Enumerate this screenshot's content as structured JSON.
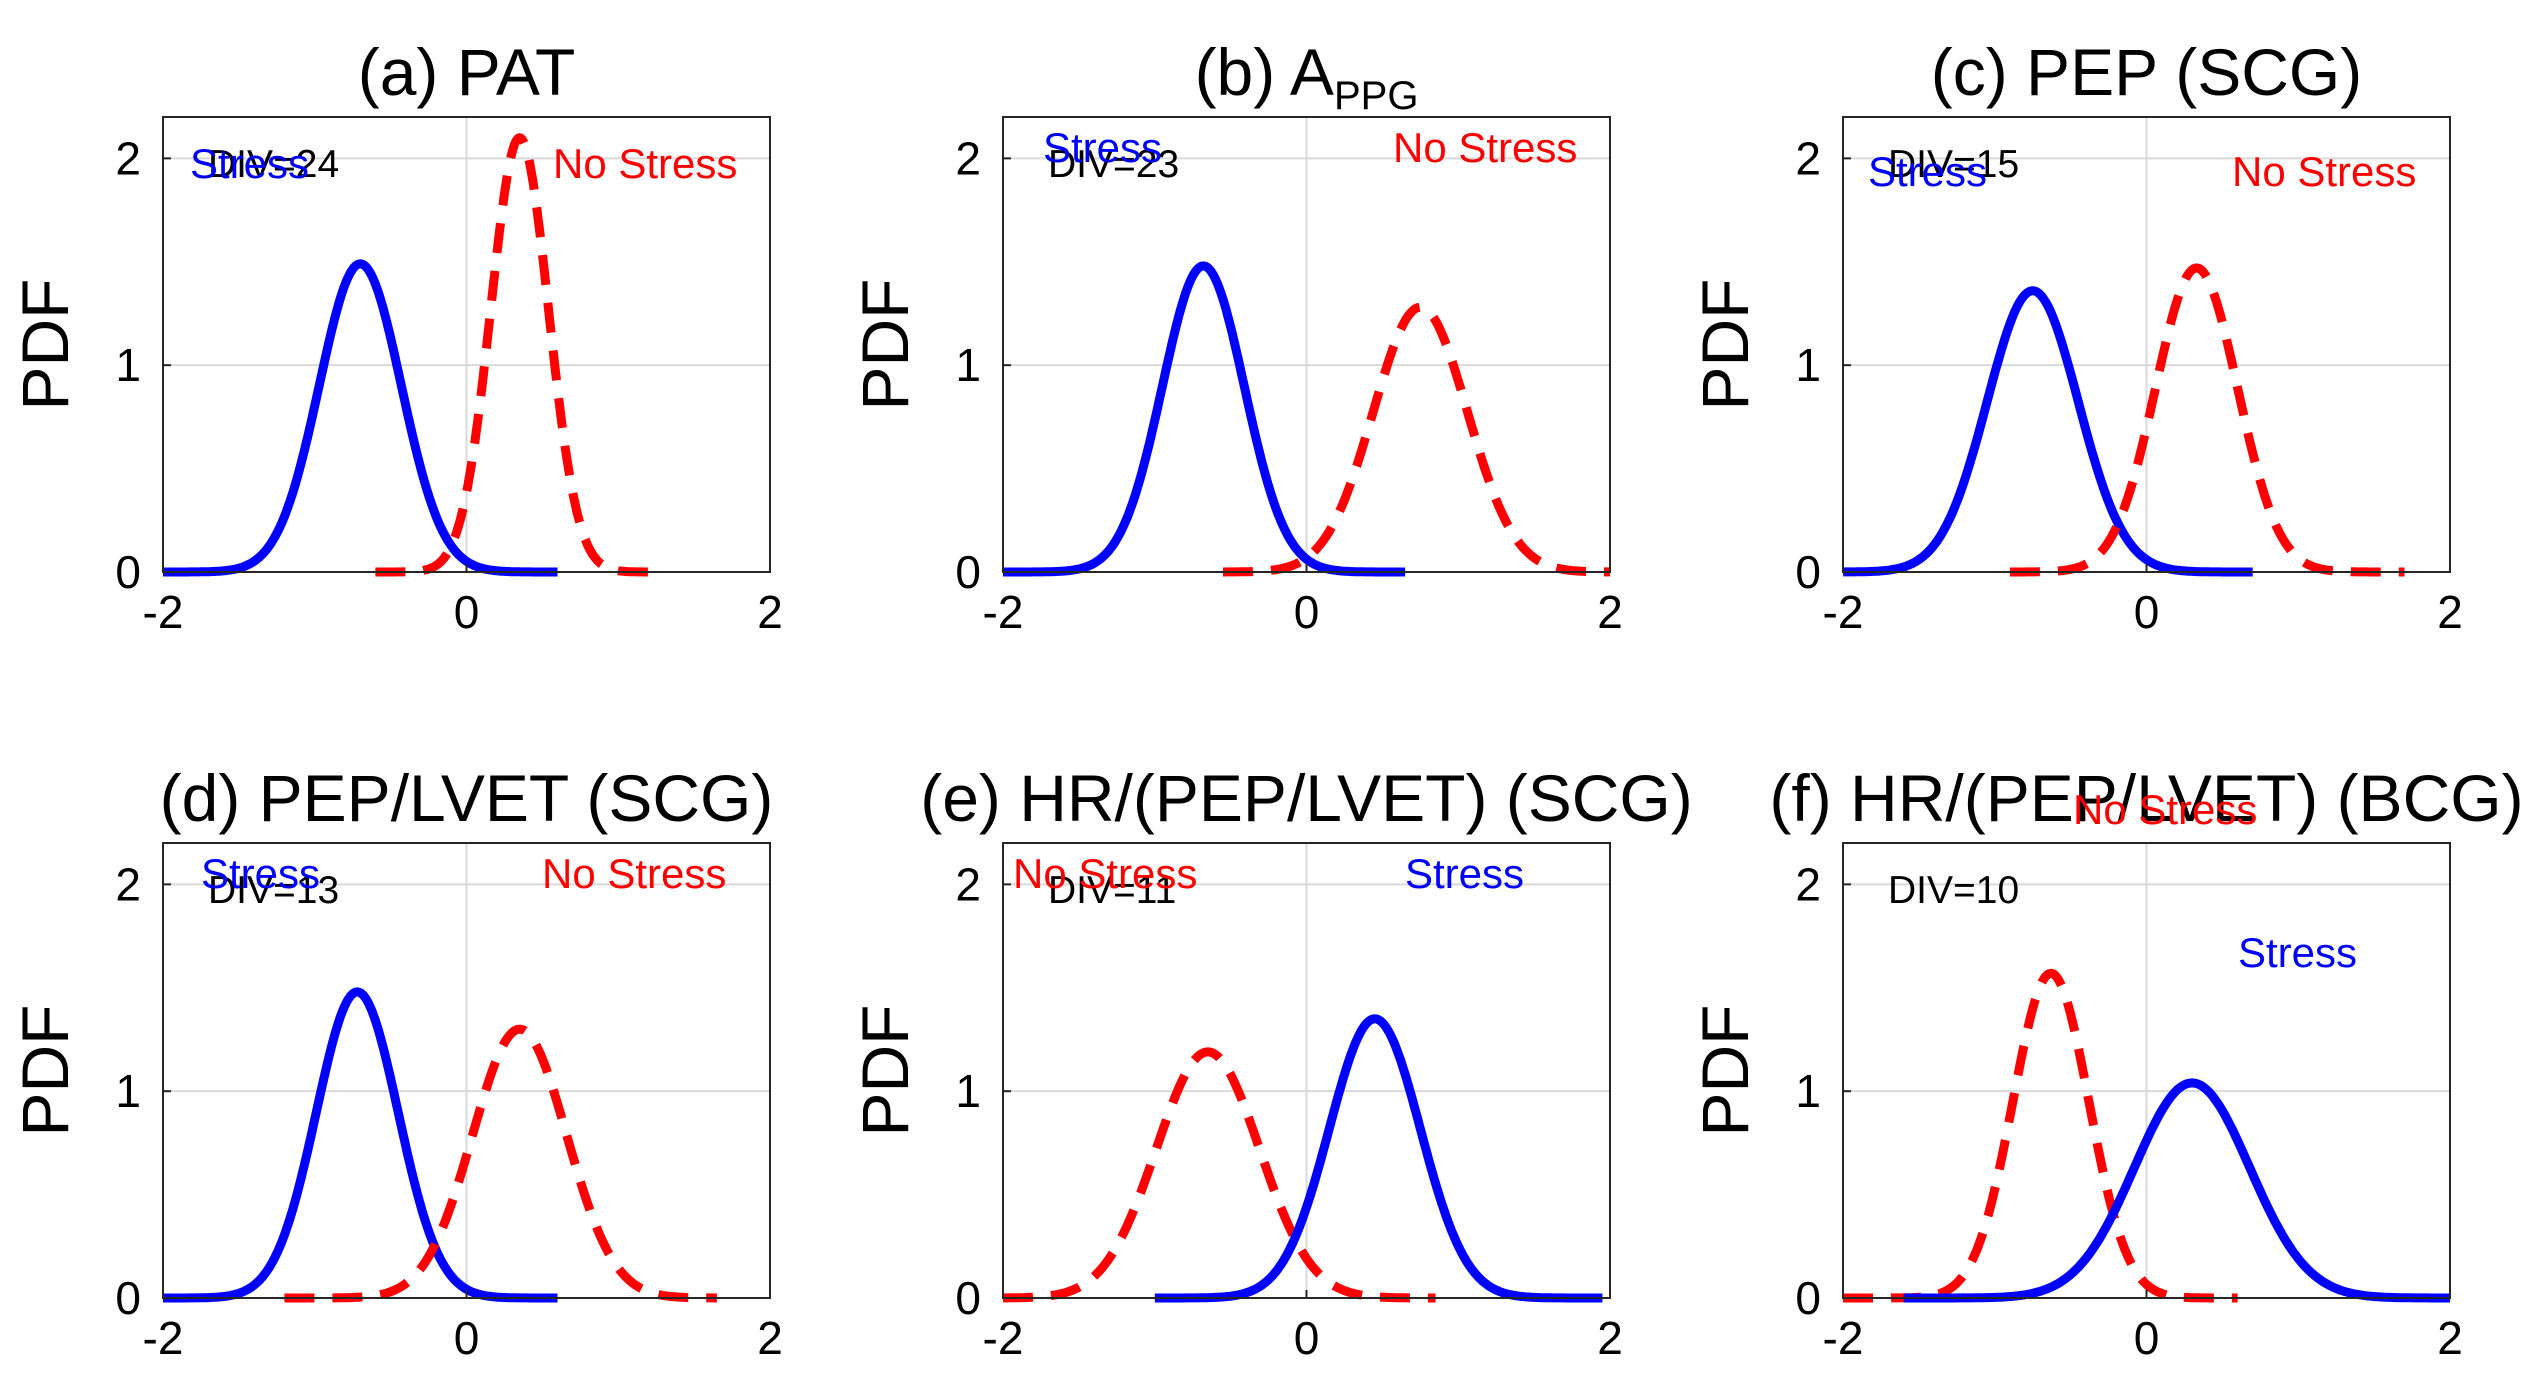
{
  "chart_data": [
    {
      "type": "line",
      "title": "(a) PAT",
      "ylabel": "PDF",
      "xlim": [
        -2,
        2
      ],
      "ylim": [
        0,
        2.2
      ],
      "xticks": [
        "-2",
        "0",
        "2"
      ],
      "yticks": [
        "0",
        "1",
        "2"
      ],
      "grid": true,
      "annotation": "DIV=24",
      "series": [
        {
          "name": "Stress",
          "color": "#0000ff",
          "style": "solid",
          "mean": -0.7,
          "sd": 0.27,
          "peak": 1.49,
          "xrange": [
            -2.0,
            0.6
          ]
        },
        {
          "name": "No Stress",
          "color": "#ff0000",
          "style": "dashed",
          "mean": 0.35,
          "sd": 0.19,
          "peak": 2.1,
          "xrange": [
            -0.6,
            1.25
          ]
        }
      ]
    },
    {
      "type": "line",
      "title": "(b) A",
      "title_sub": "PPG",
      "ylabel": "PDF",
      "xlim": [
        -2,
        2
      ],
      "ylim": [
        0,
        2.2
      ],
      "xticks": [
        "-2",
        "0",
        "2"
      ],
      "yticks": [
        "0",
        "1",
        "2"
      ],
      "grid": true,
      "annotation": "DIV=23",
      "series": [
        {
          "name": "Stress",
          "color": "#0000ff",
          "style": "solid",
          "mean": -0.68,
          "sd": 0.27,
          "peak": 1.48,
          "xrange": [
            -2.0,
            0.65
          ]
        },
        {
          "name": "No Stress",
          "color": "#ff0000",
          "style": "dashed",
          "mean": 0.75,
          "sd": 0.31,
          "peak": 1.28,
          "xrange": [
            -0.55,
            2.0
          ]
        }
      ]
    },
    {
      "type": "line",
      "title": "(c) PEP (SCG)",
      "ylabel": "PDF",
      "xlim": [
        -2,
        2
      ],
      "ylim": [
        0,
        2.2
      ],
      "xticks": [
        "-2",
        "0",
        "2"
      ],
      "yticks": [
        "0",
        "1",
        "2"
      ],
      "grid": true,
      "annotation": "DIV=15",
      "series": [
        {
          "name": "Stress",
          "color": "#0000ff",
          "style": "solid",
          "mean": -0.75,
          "sd": 0.3,
          "peak": 1.36,
          "xrange": [
            -2.0,
            0.7
          ]
        },
        {
          "name": "No Stress",
          "color": "#ff0000",
          "style": "dashed",
          "mean": 0.33,
          "sd": 0.27,
          "peak": 1.47,
          "xrange": [
            -0.9,
            1.7
          ]
        }
      ]
    },
    {
      "type": "line",
      "title": "(d) PEP/LVET (SCG)",
      "ylabel": "PDF",
      "xlim": [
        -2,
        2
      ],
      "ylim": [
        0,
        2.2
      ],
      "xticks": [
        "-2",
        "0",
        "2"
      ],
      "yticks": [
        "0",
        "1",
        "2"
      ],
      "grid": true,
      "annotation": "DIV=13",
      "series": [
        {
          "name": "Stress",
          "color": "#0000ff",
          "style": "solid",
          "mean": -0.72,
          "sd": 0.27,
          "peak": 1.48,
          "xrange": [
            -2.0,
            0.6
          ]
        },
        {
          "name": "No Stress",
          "color": "#ff0000",
          "style": "dashed",
          "mean": 0.35,
          "sd": 0.31,
          "peak": 1.3,
          "xrange": [
            -1.2,
            1.65
          ]
        }
      ]
    },
    {
      "type": "line",
      "title": "(e) HR/(PEP/LVET) (SCG)",
      "ylabel": "PDF",
      "xlim": [
        -2,
        2
      ],
      "ylim": [
        0,
        2.2
      ],
      "xticks": [
        "-2",
        "0",
        "2"
      ],
      "yticks": [
        "0",
        "1",
        "2"
      ],
      "grid": true,
      "annotation": "DIV=11",
      "series": [
        {
          "name": "No Stress",
          "color": "#ff0000",
          "style": "dashed",
          "mean": -0.65,
          "sd": 0.34,
          "peak": 1.19,
          "xrange": [
            -2.0,
            0.85
          ]
        },
        {
          "name": "Stress",
          "color": "#0000ff",
          "style": "solid",
          "mean": 0.45,
          "sd": 0.3,
          "peak": 1.35,
          "xrange": [
            -1.0,
            1.95
          ]
        }
      ]
    },
    {
      "type": "line",
      "title": "(f) HR/(PEP/LVET) (BCG)",
      "ylabel": "PDF",
      "xlim": [
        -2,
        2
      ],
      "ylim": [
        0,
        2.2
      ],
      "xticks": [
        "-2",
        "0",
        "2"
      ],
      "yticks": [
        "0",
        "1",
        "2"
      ],
      "grid": true,
      "annotation": "DIV=10",
      "series": [
        {
          "name": "No Stress",
          "color": "#ff0000",
          "style": "dashed",
          "mean": -0.63,
          "sd": 0.25,
          "peak": 1.57,
          "xrange": [
            -2.0,
            0.6
          ]
        },
        {
          "name": "Stress",
          "color": "#0000ff",
          "style": "solid",
          "mean": 0.3,
          "sd": 0.38,
          "peak": 1.04,
          "xrange": [
            -1.6,
            2.0
          ]
        }
      ]
    }
  ]
}
